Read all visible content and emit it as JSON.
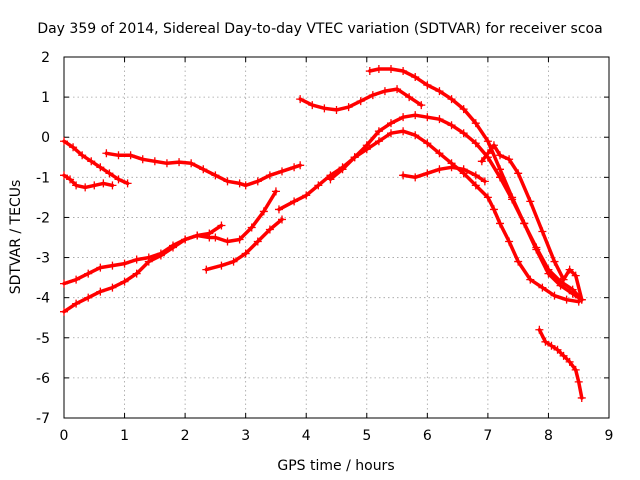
{
  "chart_data": {
    "type": "scatter",
    "title": "Day 359 of 2014, Sidereal Day-to-day VTEC variation (SDTVAR) for receiver scoa",
    "xlabel": "GPS time / hours",
    "ylabel": "SDTVAR / TECUs",
    "xlim": [
      0,
      9
    ],
    "ylim": [
      -7,
      2
    ],
    "xticks": [
      0,
      1,
      2,
      3,
      4,
      5,
      6,
      7,
      8,
      9
    ],
    "yticks": [
      -7,
      -6,
      -5,
      -4,
      -3,
      -2,
      -1,
      0,
      1,
      2
    ],
    "grid": true,
    "marker": "+",
    "color": "#ff0000",
    "series": [
      {
        "name": "track-1",
        "x": [
          0.0,
          0.15,
          0.3,
          0.45,
          0.6,
          0.75,
          0.9,
          1.05
        ],
        "y": [
          -0.1,
          -0.25,
          -0.45,
          -0.6,
          -0.75,
          -0.9,
          -1.05,
          -1.15
        ]
      },
      {
        "name": "track-2",
        "x": [
          0.0,
          0.1,
          0.2,
          0.35,
          0.5,
          0.65,
          0.8
        ],
        "y": [
          -0.95,
          -1.05,
          -1.2,
          -1.25,
          -1.2,
          -1.15,
          -1.2
        ]
      },
      {
        "name": "track-3",
        "x": [
          0.7,
          0.9,
          1.1,
          1.3,
          1.5,
          1.7,
          1.9,
          2.1,
          2.3,
          2.5,
          2.7,
          2.9,
          3.0,
          3.2,
          3.4,
          3.6,
          3.8,
          3.9
        ],
        "y": [
          -0.4,
          -0.45,
          -0.45,
          -0.55,
          -0.6,
          -0.65,
          -0.62,
          -0.65,
          -0.8,
          -0.95,
          -1.1,
          -1.15,
          -1.2,
          -1.1,
          -0.95,
          -0.85,
          -0.75,
          -0.7
        ]
      },
      {
        "name": "track-4",
        "x": [
          0.0,
          0.2,
          0.4,
          0.6,
          0.8,
          1.0,
          1.2,
          1.4,
          1.6,
          1.8,
          2.0,
          2.2,
          2.4,
          2.5,
          2.7,
          2.9,
          3.1,
          3.3,
          3.5
        ],
        "y": [
          -3.65,
          -3.55,
          -3.4,
          -3.25,
          -3.2,
          -3.15,
          -3.05,
          -3.0,
          -2.9,
          -2.7,
          -2.55,
          -2.45,
          -2.5,
          -2.5,
          -2.6,
          -2.55,
          -2.25,
          -1.85,
          -1.35
        ]
      },
      {
        "name": "track-5",
        "x": [
          0.0,
          0.2,
          0.4,
          0.6,
          0.8,
          1.0,
          1.2,
          1.4,
          1.6,
          1.8,
          2.0,
          2.2,
          2.4,
          2.6
        ],
        "y": [
          -4.35,
          -4.15,
          -4.0,
          -3.85,
          -3.75,
          -3.6,
          -3.4,
          -3.1,
          -2.95,
          -2.75,
          -2.55,
          -2.45,
          -2.4,
          -2.2
        ]
      },
      {
        "name": "track-6",
        "x": [
          2.35,
          2.6,
          2.8,
          3.0,
          3.2,
          3.4,
          3.6
        ],
        "y": [
          -3.3,
          -3.2,
          -3.1,
          -2.9,
          -2.6,
          -2.3,
          -2.05
        ]
      },
      {
        "name": "track-7",
        "x": [
          3.55,
          3.8,
          4.0,
          4.2,
          4.4,
          4.6,
          4.8,
          5.0,
          5.2,
          5.4,
          5.6,
          5.8,
          6.0,
          6.2,
          6.4,
          6.6,
          6.8,
          7.0,
          7.1,
          7.2,
          7.35,
          7.5,
          7.7,
          7.9,
          8.1,
          8.3,
          8.5
        ],
        "y": [
          -1.8,
          -1.6,
          -1.45,
          -1.2,
          -0.95,
          -0.75,
          -0.5,
          -0.3,
          -0.1,
          0.1,
          0.15,
          0.05,
          -0.15,
          -0.4,
          -0.65,
          -0.9,
          -1.2,
          -1.5,
          -1.8,
          -2.15,
          -2.6,
          -3.1,
          -3.55,
          -3.75,
          -3.95,
          -4.05,
          -4.1
        ]
      },
      {
        "name": "track-8",
        "x": [
          4.4,
          4.6,
          4.8,
          5.0,
          5.2,
          5.4,
          5.6,
          5.8,
          6.0,
          6.2,
          6.4,
          6.6,
          6.8,
          7.0,
          7.2,
          7.4,
          7.6,
          7.8,
          8.0,
          8.2,
          8.4,
          8.55
        ],
        "y": [
          -1.05,
          -0.8,
          -0.5,
          -0.2,
          0.15,
          0.35,
          0.5,
          0.55,
          0.5,
          0.45,
          0.3,
          0.1,
          -0.15,
          -0.5,
          -1.0,
          -1.55,
          -2.15,
          -2.75,
          -3.3,
          -3.6,
          -3.8,
          -4.05
        ]
      },
      {
        "name": "track-9",
        "x": [
          3.9,
          4.1,
          4.3,
          4.5,
          4.7,
          4.9,
          5.1,
          5.3,
          5.5,
          5.7,
          5.9
        ],
        "y": [
          0.95,
          0.8,
          0.72,
          0.68,
          0.75,
          0.9,
          1.05,
          1.15,
          1.2,
          1.0,
          0.8
        ]
      },
      {
        "name": "track-10",
        "x": [
          5.05,
          5.2,
          5.4,
          5.6,
          5.8,
          6.0,
          6.2,
          6.4,
          6.6,
          6.8,
          7.0,
          7.2,
          7.4,
          7.6,
          7.8,
          8.0,
          8.2,
          8.4,
          8.5
        ],
        "y": [
          1.65,
          1.7,
          1.7,
          1.65,
          1.5,
          1.3,
          1.15,
          0.95,
          0.7,
          0.35,
          -0.1,
          -0.8,
          -1.5,
          -2.15,
          -2.8,
          -3.4,
          -3.7,
          -3.9,
          -4.0
        ]
      },
      {
        "name": "track-11",
        "x": [
          5.6,
          5.8,
          6.0,
          6.2,
          6.4,
          6.6,
          6.8,
          6.95
        ],
        "y": [
          -0.95,
          -1.0,
          -0.9,
          -0.8,
          -0.75,
          -0.8,
          -0.95,
          -1.1
        ]
      },
      {
        "name": "track-12",
        "x": [
          6.9,
          7.0,
          7.1,
          7.2,
          7.35,
          7.5,
          7.7,
          7.9,
          8.1,
          8.25,
          8.35,
          8.45,
          8.55
        ],
        "y": [
          -0.6,
          -0.4,
          -0.2,
          -0.45,
          -0.55,
          -0.9,
          -1.6,
          -2.35,
          -3.1,
          -3.55,
          -3.3,
          -3.45,
          -4.05
        ]
      },
      {
        "name": "track-13",
        "x": [
          7.85,
          7.95,
          8.05,
          8.15,
          8.25,
          8.35,
          8.45,
          8.5,
          8.55
        ],
        "y": [
          -4.8,
          -5.1,
          -5.2,
          -5.3,
          -5.45,
          -5.6,
          -5.8,
          -6.1,
          -6.5
        ]
      }
    ]
  }
}
